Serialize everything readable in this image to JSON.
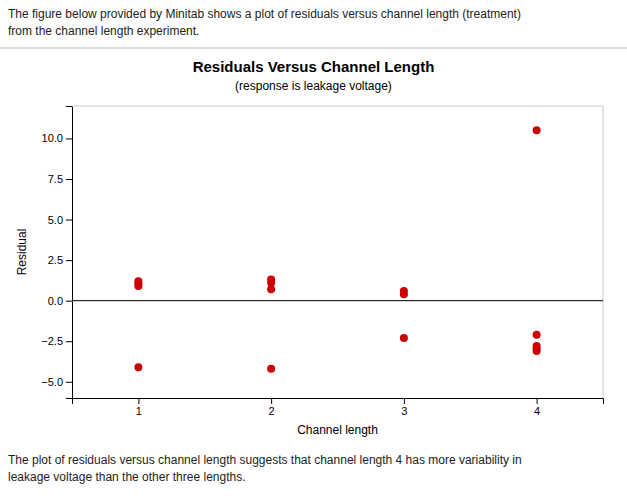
{
  "chart_data": {
    "type": "scatter",
    "title": "Residuals Versus Channel Length",
    "subtitle": "(response is leakage voltage)",
    "x_label": "Channel length",
    "y_label": "Residual",
    "annotations": [
      "The figure below provided by Minitab shows a plot of residuals versus channel length (treatment)",
      "from the channel length experiment.",
      "The plot of residuals versus channel length suggests that channel length 4 has more variability in",
      "leakage voltage than the other three lengths."
    ],
    "x": [
      1,
      1,
      1,
      1,
      2,
      2,
      2,
      2,
      3,
      3,
      3,
      4,
      4,
      4,
      4,
      4
    ],
    "values": [
      1.2,
      1.05,
      0.9,
      -4.1,
      1.3,
      1.1,
      0.7,
      -4.2,
      0.6,
      0.4,
      -2.3,
      10.5,
      -2.1,
      -2.8,
      -2.95,
      -3.1
    ],
    "color": "#cc0000",
    "hline": 0,
    "xlim": [
      0.5,
      4.5
    ],
    "ylim": [
      -6.0,
      12.0
    ],
    "xticks": [
      1,
      2,
      3,
      4
    ],
    "yticks": [
      {
        "value": -5.0,
        "label": "−5.0"
      },
      {
        "value": -2.5,
        "label": "−2.5"
      },
      {
        "value": 0.0,
        "label": "0.0"
      },
      2.5,
      {
        "value": 5.0,
        "label": "5.0"
      },
      7.5,
      {
        "value": 10.0,
        "label": "10.0"
      }
    ],
    "grid": false
  }
}
